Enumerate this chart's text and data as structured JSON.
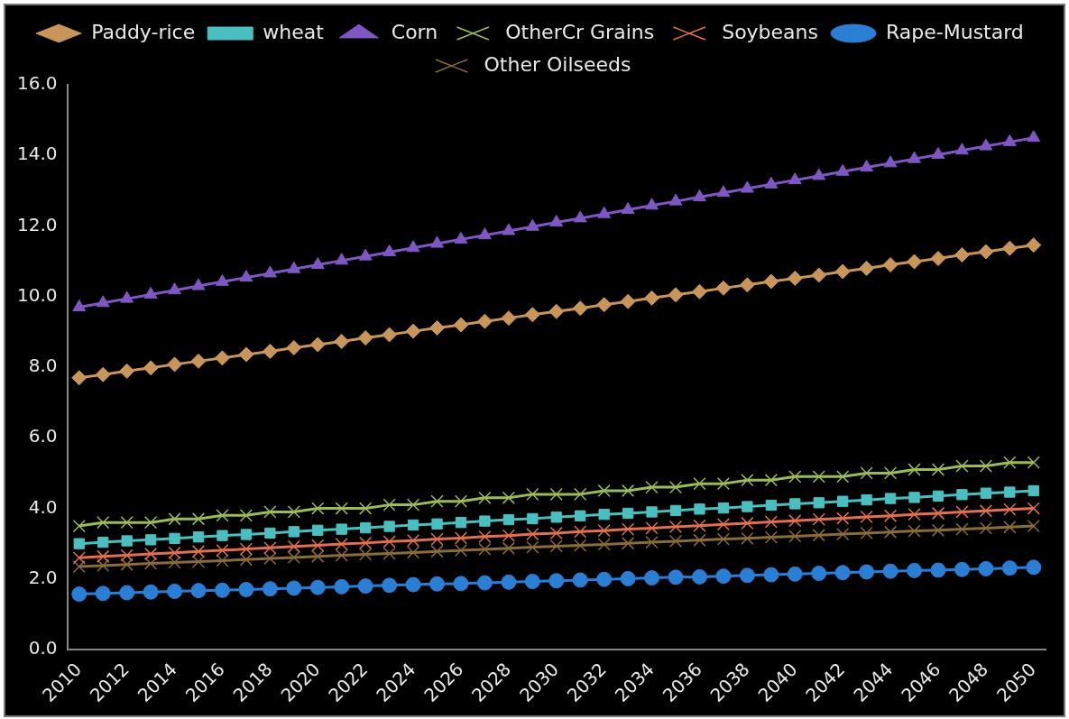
{
  "chart_data": {
    "type": "line",
    "categories": [
      "2010",
      null,
      "2012",
      null,
      "2014",
      null,
      "2016",
      null,
      "2018",
      null,
      "2020",
      null,
      "2022",
      null,
      "2024",
      null,
      "2026",
      null,
      "2028",
      null,
      "2030",
      null,
      "2032",
      null,
      "2034",
      null,
      "2036",
      null,
      "2038",
      null,
      "2040",
      null,
      "2042",
      null,
      "2044",
      null,
      "2046",
      null,
      "2048",
      null,
      "2050"
    ],
    "ylim": [
      0,
      16
    ],
    "yticks": [
      {
        "value": 0,
        "label": "0.0"
      },
      {
        "value": 2,
        "label": "2.0"
      },
      {
        "value": 4,
        "label": "4.0"
      },
      {
        "value": 6,
        "label": "6.0"
      },
      {
        "value": 8,
        "label": "8.0"
      },
      {
        "value": 10,
        "label": "10.0"
      },
      {
        "value": 12,
        "label": "12.0"
      },
      {
        "value": 14,
        "label": "14.0"
      },
      {
        "value": 16,
        "label": "16.0"
      }
    ],
    "grid": false,
    "legend": "top",
    "line_style": "solid",
    "series": [
      {
        "name": "Paddy-rice",
        "color": "#c8955a",
        "marker": "diamond",
        "values": [
          7.7,
          7.79,
          7.89,
          7.98,
          8.08,
          8.17,
          8.26,
          8.36,
          8.45,
          8.55,
          8.64,
          8.73,
          8.83,
          8.92,
          9.02,
          9.11,
          9.2,
          9.3,
          9.39,
          9.49,
          9.58,
          9.67,
          9.77,
          9.86,
          9.96,
          10.05,
          10.14,
          10.24,
          10.33,
          10.43,
          10.52,
          10.61,
          10.71,
          10.8,
          10.9,
          10.99,
          11.08,
          11.18,
          11.27,
          11.37,
          11.46
        ]
      },
      {
        "name": "wheat",
        "color": "#4bbfbf",
        "marker": "square",
        "values": [
          3.0,
          3.04,
          3.08,
          3.11,
          3.15,
          3.19,
          3.23,
          3.26,
          3.3,
          3.34,
          3.38,
          3.41,
          3.45,
          3.49,
          3.53,
          3.56,
          3.6,
          3.64,
          3.68,
          3.71,
          3.75,
          3.79,
          3.83,
          3.86,
          3.9,
          3.94,
          3.98,
          4.01,
          4.05,
          4.09,
          4.13,
          4.16,
          4.2,
          4.24,
          4.28,
          4.31,
          4.35,
          4.39,
          4.43,
          4.46,
          4.5
        ]
      },
      {
        "name": "Corn",
        "color": "#7e57c2",
        "marker": "triangle",
        "values": [
          9.7,
          9.82,
          9.94,
          10.06,
          10.18,
          10.3,
          10.42,
          10.54,
          10.66,
          10.78,
          10.9,
          11.02,
          11.14,
          11.26,
          11.38,
          11.5,
          11.62,
          11.74,
          11.86,
          11.98,
          12.1,
          12.22,
          12.34,
          12.46,
          12.58,
          12.7,
          12.82,
          12.94,
          13.06,
          13.18,
          13.3,
          13.42,
          13.54,
          13.66,
          13.78,
          13.9,
          14.02,
          14.14,
          14.26,
          14.38,
          14.5
        ]
      },
      {
        "name": "OtherCr Grains",
        "color": "#9bbb59",
        "marker": "cross",
        "values": [
          3.5,
          3.6,
          3.6,
          3.6,
          3.7,
          3.7,
          3.8,
          3.8,
          3.9,
          3.9,
          4.0,
          4.0,
          4.0,
          4.1,
          4.1,
          4.2,
          4.2,
          4.3,
          4.3,
          4.4,
          4.4,
          4.4,
          4.5,
          4.5,
          4.6,
          4.6,
          4.7,
          4.7,
          4.8,
          4.8,
          4.9,
          4.9,
          4.9,
          5.0,
          5.0,
          5.1,
          5.1,
          5.2,
          5.2,
          5.3,
          5.3
        ]
      },
      {
        "name": "Soybeans",
        "color": "#e07050",
        "marker": "cross",
        "values": [
          2.6,
          2.64,
          2.67,
          2.71,
          2.74,
          2.78,
          2.81,
          2.85,
          2.88,
          2.92,
          2.95,
          2.99,
          3.02,
          3.06,
          3.09,
          3.13,
          3.16,
          3.2,
          3.23,
          3.27,
          3.3,
          3.34,
          3.37,
          3.41,
          3.44,
          3.48,
          3.51,
          3.55,
          3.58,
          3.62,
          3.65,
          3.69,
          3.72,
          3.76,
          3.79,
          3.83,
          3.86,
          3.9,
          3.93,
          3.97,
          4.0
        ]
      },
      {
        "name": "Rape-Mustard",
        "color": "#2a7fd4",
        "marker": "circle",
        "values": [
          1.57,
          1.59,
          1.61,
          1.63,
          1.65,
          1.67,
          1.68,
          1.7,
          1.72,
          1.74,
          1.76,
          1.78,
          1.8,
          1.82,
          1.84,
          1.86,
          1.87,
          1.89,
          1.91,
          1.93,
          1.95,
          1.97,
          1.99,
          2.01,
          2.03,
          2.05,
          2.06,
          2.08,
          2.1,
          2.12,
          2.14,
          2.16,
          2.18,
          2.2,
          2.22,
          2.24,
          2.25,
          2.27,
          2.29,
          2.31,
          2.33
        ]
      },
      {
        "name": "Other Oilseeds",
        "color": "#8a6b3a",
        "marker": "cross",
        "values": [
          2.35,
          2.38,
          2.41,
          2.44,
          2.47,
          2.49,
          2.52,
          2.55,
          2.58,
          2.61,
          2.64,
          2.67,
          2.7,
          2.72,
          2.75,
          2.78,
          2.81,
          2.84,
          2.87,
          2.9,
          2.93,
          2.95,
          2.98,
          3.01,
          3.04,
          3.07,
          3.1,
          3.13,
          3.15,
          3.18,
          3.21,
          3.24,
          3.27,
          3.3,
          3.33,
          3.36,
          3.38,
          3.41,
          3.44,
          3.47,
          3.5
        ]
      }
    ]
  }
}
